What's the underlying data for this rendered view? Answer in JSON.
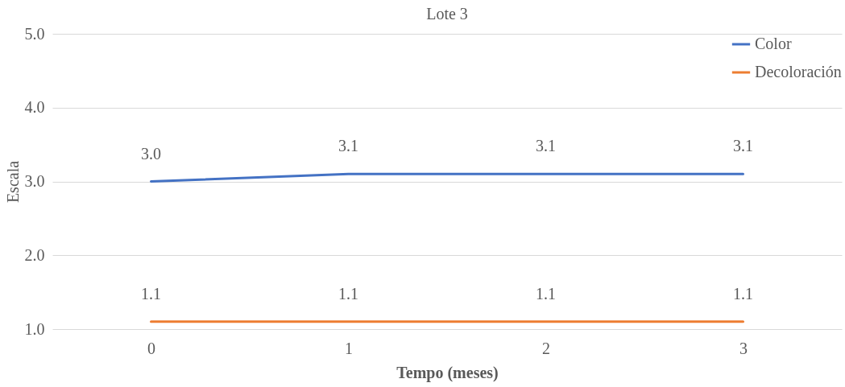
{
  "chart_data": {
    "type": "line",
    "title": "Lote 3",
    "xlabel": "Tempo (meses)",
    "ylabel": "Escala",
    "categories": [
      "0",
      "1",
      "2",
      "3"
    ],
    "series": [
      {
        "name": "Color",
        "color": "#4472c4",
        "values": [
          3.0,
          3.1,
          3.1,
          3.1
        ],
        "value_labels": [
          "3.0",
          "3.1",
          "3.1",
          "3.1"
        ]
      },
      {
        "name": "Decoloración",
        "color": "#ed7d31",
        "values": [
          1.1,
          1.1,
          1.1,
          1.1
        ],
        "value_labels": [
          "1.1",
          "1.1",
          "1.1",
          "1.1"
        ]
      }
    ],
    "ylim": [
      1,
      5
    ],
    "yticks": [
      {
        "value": 1,
        "label": "1.0"
      },
      {
        "value": 2,
        "label": "2.0"
      },
      {
        "value": 3,
        "label": "3.0"
      },
      {
        "value": 4,
        "label": "4.0"
      },
      {
        "value": 5,
        "label": "5.0"
      }
    ],
    "grid": "y",
    "legend": "top right"
  }
}
